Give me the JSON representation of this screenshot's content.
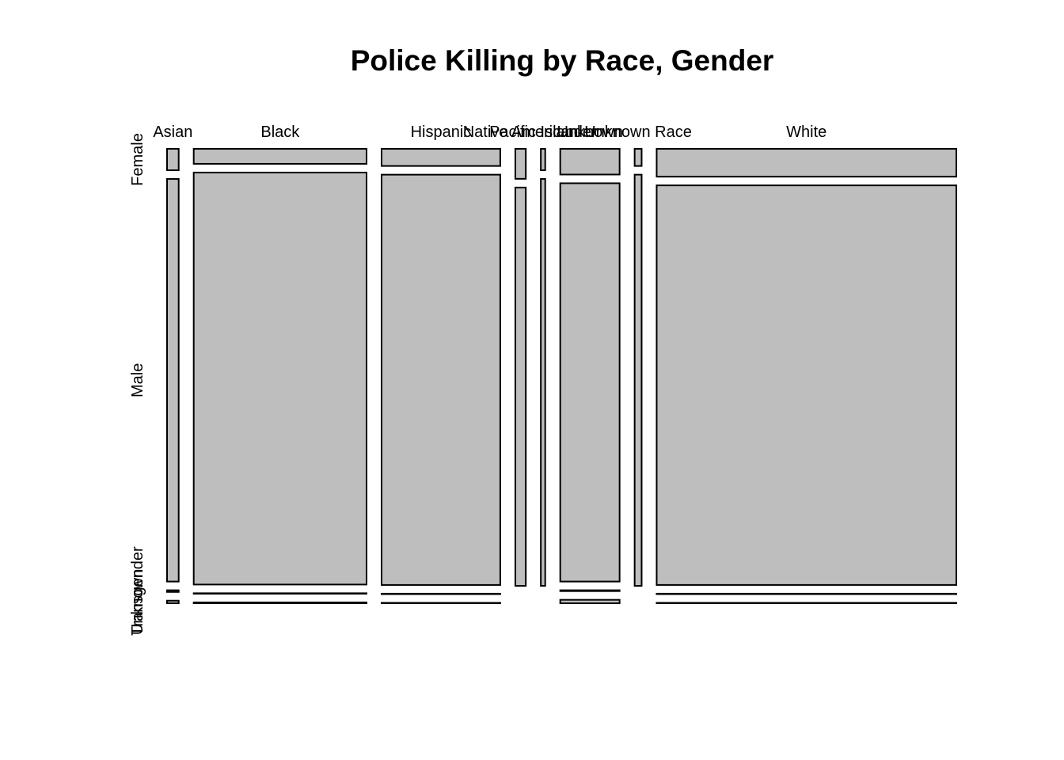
{
  "chart_data": {
    "type": "mosaic",
    "title": "Police Killing by Race, Gender",
    "xlabel": "",
    "ylabel": "",
    "grid": false,
    "fill_color": "#bebebe",
    "border_color": "#000000",
    "categories": [
      "Asian",
      "Black",
      "Hispanic",
      "Native American",
      "Pacific Islander",
      "Unknown",
      "Unknown Race",
      "White"
    ],
    "category_labels": [
      "Asian",
      "Black",
      "Hispanic",
      "Native American",
      "Pacific Islander",
      "Unknown",
      "Unknown Race",
      "White"
    ],
    "groups": [
      "Female",
      "Male",
      "Transgender",
      "Unknown"
    ],
    "proportions": [
      [
        0.05,
        0.94,
        0.004,
        0.006
      ],
      [
        0.035,
        0.962,
        0.001,
        0.002
      ],
      [
        0.04,
        0.958,
        0.001,
        0.001
      ],
      [
        0.07,
        0.93,
        0.0,
        0.0
      ],
      [
        0.05,
        0.95,
        0.0,
        0.0
      ],
      [
        0.06,
        0.93,
        0.002,
        0.008
      ],
      [
        0.04,
        0.96,
        0.0,
        0.0
      ],
      [
        0.065,
        0.933,
        0.001,
        0.001
      ]
    ],
    "widths": [
      0.04,
      0.594,
      0.408,
      0.036,
      0.015,
      0.204,
      0.024,
      1.03
    ]
  }
}
